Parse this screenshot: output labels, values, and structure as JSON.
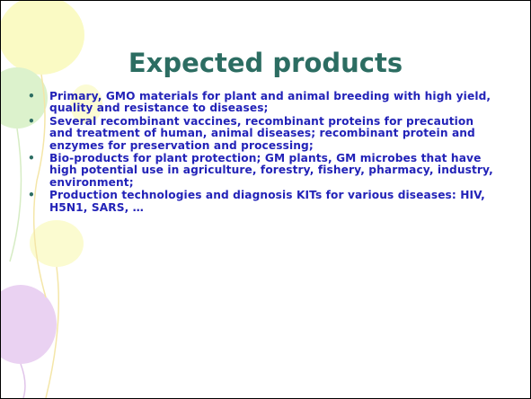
{
  "title": "Expected products",
  "bullets": [
    "Primary, GMO materials for plant and animal breeding with high yield, quality and resistance to diseases;",
    "Several recombinant vaccines, recombinant proteins for precaution and treatment of human, animal diseases; recombinant protein and enzymes for preservation and processing;",
    "Bio-products for plant protection; GM plants, GM microbes that have high potential use in agriculture, forestry, fishery, pharmacy, industry, environment;",
    "Production technologies and diagnosis KITs for various diseases: HIV, H5N1, SARS, …"
  ]
}
